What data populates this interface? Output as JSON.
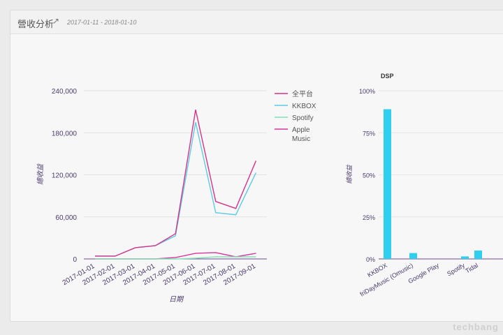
{
  "header": {
    "title": "營收分析",
    "date_range": "2017-01-11 - 2018-01-10",
    "link_icon": "external-link-icon"
  },
  "watermark": "techbang",
  "chart_data": [
    {
      "type": "line",
      "title": "",
      "xlabel": "日期",
      "ylabel": "總收益",
      "ylim": [
        0,
        240000
      ],
      "yticks": [
        "0",
        "60,000",
        "120,000",
        "180,000",
        "240,000"
      ],
      "ytick_values": [
        0,
        60000,
        120000,
        180000,
        240000
      ],
      "categories": [
        "2017-01-01",
        "2017-02-01",
        "2017-03-01",
        "2017-04-01",
        "2017-05-01",
        "2017-06-01",
        "2017-07-01",
        "2017-08-01",
        "2017-09-01"
      ],
      "legend_position": "right",
      "series": [
        {
          "name": "全平台",
          "color": "#d4338a",
          "values": [
            4000,
            4000,
            16000,
            19000,
            36000,
            213000,
            82000,
            72000,
            140000
          ]
        },
        {
          "name": "KKBOX",
          "color": "#5ccbe3",
          "values": [
            4000,
            4000,
            16000,
            19000,
            33000,
            195000,
            66000,
            63000,
            123000
          ]
        },
        {
          "name": "Spotify",
          "color": "#80e2b6",
          "values": [
            0,
            0,
            0,
            0,
            0,
            1000,
            3000,
            3000,
            3000
          ]
        },
        {
          "name": "Apple Music",
          "color": "#d8349e",
          "values": [
            0,
            0,
            0,
            0,
            2000,
            8000,
            9000,
            3000,
            8000
          ]
        }
      ]
    },
    {
      "type": "bar",
      "title": "DSP",
      "xlabel": "",
      "ylabel": "總收益",
      "ylim": [
        0,
        100
      ],
      "yticks": [
        "0%",
        "25%",
        "50%",
        "75%",
        "100%"
      ],
      "ytick_values": [
        0,
        25,
        50,
        75,
        100
      ],
      "categories": [
        "KKBOX",
        "friDayMusic (Omusic)",
        "Google Play",
        "Spotify",
        "Tidal"
      ],
      "values": [
        89,
        3.5,
        0,
        1.5,
        5
      ],
      "color": "#2fd0ef"
    }
  ]
}
